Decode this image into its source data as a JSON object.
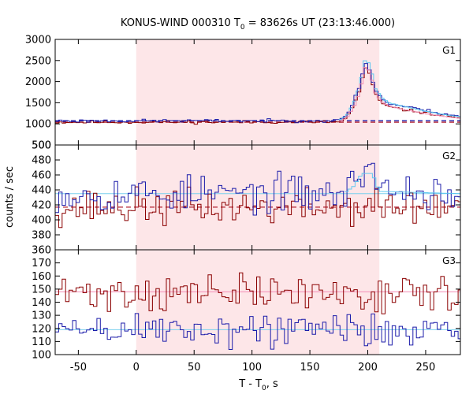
{
  "chart_data": {
    "type": "line",
    "title_main": "KONUS-WIND 000310 T",
    "title_sub": "0",
    "title_tail": " = 83626s UT (23:13:46.000)",
    "xlabel_main": "T - T",
    "xlabel_sub": "0",
    "xlabel_tail": ", s",
    "ylabel": "counts / sec",
    "xlim": [
      -70,
      280
    ],
    "xticks": [
      -50,
      0,
      50,
      100,
      150,
      200,
      250
    ],
    "highlight_interval": [
      0,
      210
    ],
    "colors": {
      "red": "#8b0000",
      "blue": "#1c1caa",
      "light_blue": "#60c8f0",
      "pink": "#f08ab0",
      "highlight": "#fde6e8",
      "red_bg": "#b22030",
      "blue_bg": "#1c1caa",
      "blue_fit": "#7ad0ee",
      "red_fit": "#f48cb6"
    },
    "panels": [
      {
        "name": "G1",
        "ylim": [
          500,
          3000
        ],
        "yticks": [
          500,
          1000,
          1500,
          2000,
          2500,
          3000
        ],
        "backgrounds": [
          {
            "color_key": "blue_bg",
            "value": 1075,
            "dashed": true
          },
          {
            "color_key": "red_bg",
            "value": 1040,
            "dashed": true
          }
        ],
        "series": [
          {
            "name": "",
            "color_key": "red",
            "noise": 18,
            "seed": 11,
            "knots": [
              [
                -70,
                1040
              ],
              [
                175,
                1045
              ],
              [
                182,
                1150
              ],
              [
                188,
                1450
              ],
              [
                193,
                1800
              ],
              [
                198,
                2350
              ],
              [
                202,
                2150
              ],
              [
                206,
                1750
              ],
              [
                212,
                1500
              ],
              [
                218,
                1400
              ],
              [
                230,
                1340
              ],
              [
                250,
                1260
              ],
              [
                270,
                1180
              ],
              [
                280,
                1150
              ]
            ]
          },
          {
            "name": "",
            "color_key": "blue",
            "noise": 18,
            "seed": 23,
            "knots": [
              [
                -70,
                1070
              ],
              [
                175,
                1075
              ],
              [
                182,
                1200
              ],
              [
                188,
                1550
              ],
              [
                193,
                1900
              ],
              [
                198,
                2450
              ],
              [
                202,
                2250
              ],
              [
                206,
                1850
              ],
              [
                212,
                1600
              ],
              [
                218,
                1480
              ],
              [
                230,
                1420
              ],
              [
                250,
                1320
              ],
              [
                270,
                1220
              ],
              [
                280,
                1190
              ]
            ]
          },
          {
            "name": "",
            "color_key": "light_blue",
            "noise": 0,
            "seed": 1,
            "knots": [
              [
                175,
                1080
              ],
              [
                182,
                1200
              ],
              [
                188,
                1500
              ],
              [
                193,
                1900
              ],
              [
                198,
                2560
              ],
              [
                202,
                2380
              ],
              [
                206,
                1850
              ],
              [
                212,
                1620
              ],
              [
                218,
                1500
              ],
              [
                230,
                1420
              ],
              [
                250,
                1300
              ],
              [
                270,
                1200
              ],
              [
                280,
                1170
              ]
            ]
          },
          {
            "name": "",
            "color_key": "pink",
            "noise": 0,
            "seed": 1,
            "knots": [
              [
                175,
                1050
              ],
              [
                182,
                1150
              ],
              [
                188,
                1400
              ],
              [
                193,
                1750
              ],
              [
                198,
                2400
              ],
              [
                202,
                2200
              ],
              [
                206,
                1750
              ],
              [
                212,
                1520
              ],
              [
                218,
                1420
              ],
              [
                230,
                1350
              ],
              [
                250,
                1240
              ],
              [
                270,
                1160
              ],
              [
                280,
                1130
              ]
            ]
          }
        ]
      },
      {
        "name": "G2",
        "ylim": [
          360,
          500
        ],
        "yticks": [
          360,
          380,
          400,
          420,
          440,
          460,
          480,
          500
        ],
        "backgrounds": [
          {
            "color_key": "blue_fit",
            "value": 435,
            "dashed": false
          },
          {
            "color_key": "red_bg",
            "value": 417,
            "dashed": true
          }
        ],
        "series": [
          {
            "name": "",
            "color_key": "red",
            "noise": 12,
            "seed": 37,
            "knots": [
              [
                -70,
                417
              ],
              [
                280,
                417
              ]
            ]
          },
          {
            "name": "",
            "color_key": "blue",
            "noise": 12,
            "seed": 53,
            "knots": [
              [
                -70,
                435
              ],
              [
                180,
                435
              ],
              [
                190,
                450
              ],
              [
                198,
                475
              ],
              [
                204,
                472
              ],
              [
                210,
                440
              ],
              [
                280,
                435
              ]
            ]
          },
          {
            "name": "",
            "color_key": "light_blue",
            "noise": 0,
            "seed": 1,
            "knots": [
              [
                180,
                436
              ],
              [
                188,
                445
              ],
              [
                195,
                462
              ],
              [
                204,
                462
              ],
              [
                210,
                438
              ],
              [
                280,
                435
              ]
            ]
          }
        ]
      },
      {
        "name": "G3",
        "ylim": [
          100,
          180
        ],
        "yticks": [
          100,
          110,
          120,
          130,
          140,
          150,
          160,
          170
        ],
        "backgrounds": [
          {
            "color_key": "red_fit",
            "value": 148,
            "dashed": false
          },
          {
            "color_key": "blue_fit",
            "value": 119,
            "dashed": false
          }
        ],
        "series": [
          {
            "name": "",
            "color_key": "red",
            "noise": 7,
            "seed": 71,
            "knots": [
              [
                -70,
                147
              ],
              [
                280,
                147
              ]
            ]
          },
          {
            "name": "",
            "color_key": "blue",
            "noise": 7,
            "seed": 89,
            "knots": [
              [
                -70,
                119
              ],
              [
                280,
                119
              ]
            ]
          }
        ]
      }
    ]
  }
}
